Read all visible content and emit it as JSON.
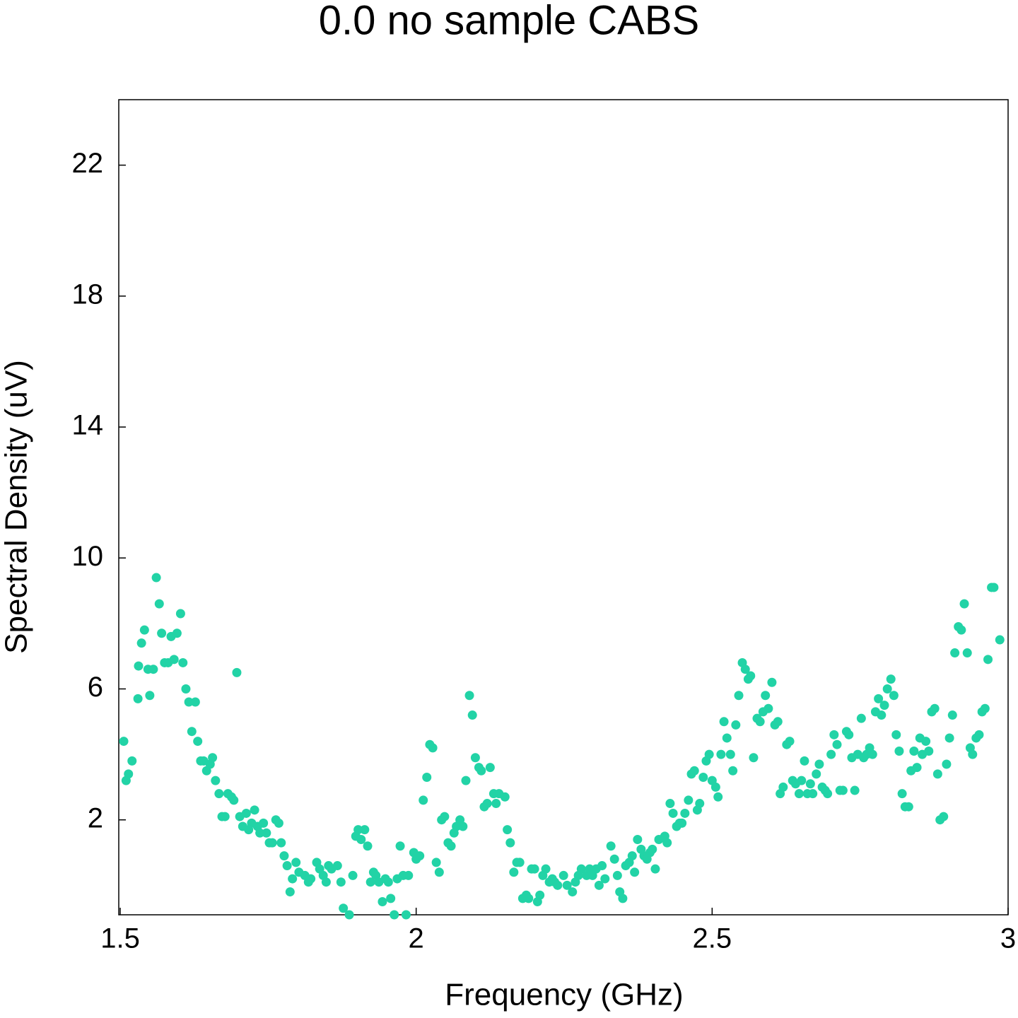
{
  "chart_data": {
    "type": "scatter",
    "title": "0.0 no sample CABS",
    "x_label": "Frequency (GHz)",
    "y_label": "Spectral Density (uV)",
    "color": "#22d3a6",
    "xlim": [
      1.4976,
      3.0
    ],
    "xticks": [
      1.5,
      2,
      2.5,
      3
    ],
    "ylim": [
      -0.9,
      24
    ],
    "yticks": [
      2,
      6,
      10,
      14,
      18,
      22
    ],
    "x": [
      1.506,
      1.51,
      1.514,
      1.52,
      1.53,
      1.531,
      1.536,
      1.541,
      1.547,
      1.55,
      1.556,
      1.561,
      1.566,
      1.57,
      1.575,
      1.581,
      1.586,
      1.591,
      1.596,
      1.602,
      1.606,
      1.611,
      1.616,
      1.621,
      1.627,
      1.631,
      1.636,
      1.641,
      1.646,
      1.652,
      1.656,
      1.661,
      1.667,
      1.672,
      1.677,
      1.682,
      1.688,
      1.692,
      1.697,
      1.702,
      1.707,
      1.713,
      1.717,
      1.722,
      1.727,
      1.732,
      1.736,
      1.742,
      1.747,
      1.752,
      1.757,
      1.763,
      1.768,
      1.772,
      1.777,
      1.782,
      1.787,
      1.791,
      1.797,
      1.802,
      1.812,
      1.818,
      1.822,
      1.832,
      1.837,
      1.843,
      1.848,
      1.852,
      1.857,
      1.867,
      1.873,
      1.877,
      1.887,
      1.893,
      1.898,
      1.902,
      1.907,
      1.913,
      1.918,
      1.923,
      1.928,
      1.932,
      1.937,
      1.943,
      1.948,
      1.953,
      1.957,
      1.963,
      1.968,
      1.973,
      1.978,
      1.983,
      1.987,
      1.996,
      2.0,
      2.006,
      2.012,
      2.018,
      2.023,
      2.028,
      2.034,
      2.039,
      2.043,
      2.048,
      2.054,
      2.059,
      2.064,
      2.068,
      2.074,
      2.079,
      2.084,
      2.09,
      2.095,
      2.1,
      2.106,
      2.11,
      2.115,
      2.12,
      2.125,
      2.131,
      2.135,
      2.14,
      2.15,
      2.154,
      2.159,
      2.165,
      2.17,
      2.175,
      2.18,
      2.186,
      2.19,
      2.195,
      2.2,
      2.205,
      2.209,
      2.214,
      2.219,
      2.225,
      2.23,
      2.234,
      2.239,
      2.249,
      2.255,
      2.264,
      2.269,
      2.274,
      2.279,
      2.288,
      2.293,
      2.298,
      2.304,
      2.309,
      2.314,
      2.319,
      2.329,
      2.335,
      2.34,
      2.344,
      2.349,
      2.354,
      2.36,
      2.365,
      2.369,
      2.374,
      2.38,
      2.385,
      2.39,
      2.395,
      2.399,
      2.404,
      2.41,
      2.42,
      2.424,
      2.429,
      2.434,
      2.44,
      2.445,
      2.449,
      2.454,
      2.46,
      2.465,
      2.47,
      2.475,
      2.479,
      2.485,
      2.49,
      2.495,
      2.5,
      2.506,
      2.51,
      2.515,
      2.52,
      2.525,
      2.531,
      2.535,
      2.54,
      2.545,
      2.551,
      2.556,
      2.561,
      2.565,
      2.57,
      2.576,
      2.581,
      2.586,
      2.59,
      2.595,
      2.601,
      2.606,
      2.611,
      2.615,
      2.62,
      2.626,
      2.631,
      2.636,
      2.641,
      2.647,
      2.651,
      2.656,
      2.661,
      2.666,
      2.67,
      2.676,
      2.681,
      2.686,
      2.691,
      2.695,
      2.701,
      2.706,
      2.711,
      2.716,
      2.721,
      2.727,
      2.731,
      2.736,
      2.741,
      2.746,
      2.752,
      2.756,
      2.761,
      2.766,
      2.771,
      2.776,
      2.781,
      2.786,
      2.791,
      2.796,
      2.802,
      2.807,
      2.811,
      2.816,
      2.821,
      2.826,
      2.832,
      2.836,
      2.841,
      2.846,
      2.851,
      2.855,
      2.861,
      2.866,
      2.871,
      2.876,
      2.881,
      2.885,
      2.891,
      2.896,
      2.901,
      2.906,
      2.91,
      2.916,
      2.921,
      2.926,
      2.931,
      2.936,
      2.94,
      2.946,
      2.951,
      2.956,
      2.961,
      2.966,
      2.972,
      2.976,
      2.986
    ],
    "values": [
      4.4,
      3.2,
      3.4,
      3.8,
      5.7,
      6.7,
      7.4,
      7.8,
      6.6,
      5.8,
      6.6,
      9.4,
      8.6,
      7.7,
      6.8,
      6.8,
      7.6,
      6.9,
      7.7,
      8.3,
      6.8,
      6.0,
      5.6,
      4.7,
      5.6,
      4.4,
      3.8,
      3.8,
      3.5,
      3.7,
      3.9,
      3.2,
      2.8,
      2.1,
      2.1,
      2.8,
      2.7,
      2.6,
      6.5,
      2.1,
      1.8,
      2.2,
      1.7,
      1.9,
      2.3,
      1.8,
      1.6,
      1.9,
      1.6,
      1.3,
      1.3,
      2.0,
      1.9,
      1.3,
      0.9,
      0.6,
      -0.2,
      0.2,
      0.7,
      0.4,
      0.3,
      0.1,
      0.2,
      0.7,
      0.5,
      0.3,
      0.1,
      0.6,
      0.5,
      0.6,
      0.1,
      -0.7,
      -0.9,
      0.3,
      1.5,
      1.7,
      1.4,
      1.7,
      1.2,
      0.1,
      0.4,
      0.3,
      0.1,
      -0.5,
      0.2,
      0.1,
      -0.4,
      -0.9,
      0.2,
      1.2,
      0.3,
      -0.9,
      0.3,
      1.0,
      0.8,
      0.9,
      2.6,
      3.3,
      4.3,
      4.2,
      0.7,
      0.4,
      2.0,
      2.1,
      1.3,
      1.2,
      1.6,
      1.8,
      2.0,
      1.8,
      3.2,
      5.8,
      5.2,
      3.9,
      3.6,
      3.5,
      2.4,
      2.5,
      3.6,
      2.8,
      2.5,
      2.8,
      2.7,
      1.7,
      1.3,
      0.4,
      0.7,
      0.7,
      -0.4,
      -0.3,
      -0.4,
      0.5,
      0.5,
      -0.5,
      -0.3,
      0.3,
      0.5,
      0.1,
      0.2,
      0.1,
      0.0,
      0.3,
      0.0,
      -0.2,
      0.1,
      0.3,
      0.5,
      0.3,
      0.5,
      0.3,
      0.5,
      0.0,
      0.6,
      0.2,
      1.2,
      0.8,
      0.3,
      -0.2,
      -0.4,
      0.6,
      0.7,
      0.9,
      0.4,
      1.4,
      1.1,
      0.9,
      0.8,
      1.0,
      1.1,
      0.5,
      1.4,
      1.5,
      1.3,
      2.5,
      2.2,
      1.8,
      1.9,
      1.9,
      2.2,
      2.6,
      3.4,
      3.5,
      2.3,
      2.5,
      3.3,
      3.8,
      4.0,
      3.2,
      3.0,
      2.7,
      4.0,
      5.0,
      4.5,
      4.0,
      3.5,
      4.9,
      5.8,
      6.8,
      6.6,
      6.3,
      6.4,
      3.9,
      5.1,
      5.0,
      5.3,
      5.8,
      5.4,
      6.2,
      4.9,
      5.0,
      2.8,
      3.0,
      4.3,
      4.4,
      3.2,
      3.1,
      2.8,
      3.2,
      3.8,
      2.8,
      3.1,
      2.8,
      3.4,
      3.7,
      3.0,
      2.9,
      2.8,
      4.0,
      4.6,
      4.3,
      2.9,
      2.9,
      4.7,
      4.6,
      3.9,
      2.9,
      4.0,
      5.1,
      3.9,
      4.0,
      4.2,
      4.0,
      5.3,
      5.7,
      5.2,
      5.5,
      6.0,
      6.3,
      5.8,
      4.6,
      4.1,
      2.8,
      2.4,
      2.4,
      3.5,
      4.1,
      3.6,
      4.5,
      4.0,
      4.4,
      4.1,
      5.3,
      5.4,
      3.4,
      2.0,
      2.1,
      3.7,
      4.5,
      5.2,
      7.1,
      7.9,
      7.8,
      8.6,
      7.1,
      4.2,
      4.0,
      4.5,
      4.6,
      5.3,
      5.4,
      6.9,
      9.1,
      9.1,
      7.5
    ]
  }
}
